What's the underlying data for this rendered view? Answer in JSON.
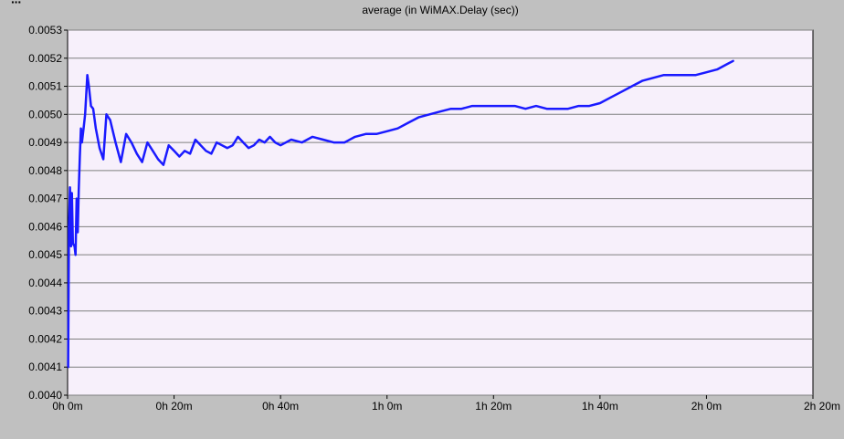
{
  "chart_data": {
    "type": "line",
    "title": "average (in WiMAX.Delay (sec))",
    "xlabel": "",
    "ylabel": "",
    "xlim_minutes": [
      0,
      140
    ],
    "ylim": [
      0.004,
      0.0053
    ],
    "grid": true,
    "line_color": "#1a1aff",
    "plot_background": "#f7f0fb",
    "x_ticks": [
      {
        "value": 0,
        "label": "0h 0m"
      },
      {
        "value": 20,
        "label": "0h 20m"
      },
      {
        "value": 40,
        "label": "0h 40m"
      },
      {
        "value": 60,
        "label": "1h 0m"
      },
      {
        "value": 80,
        "label": "1h 20m"
      },
      {
        "value": 100,
        "label": "1h 40m"
      },
      {
        "value": 120,
        "label": "2h 0m"
      },
      {
        "value": 140,
        "label": "2h 20m"
      }
    ],
    "y_ticks": [
      {
        "value": 0.004,
        "label": "0.0040"
      },
      {
        "value": 0.0041,
        "label": "0.0041"
      },
      {
        "value": 0.0042,
        "label": "0.0042"
      },
      {
        "value": 0.0043,
        "label": "0.0043"
      },
      {
        "value": 0.0044,
        "label": "0.0044"
      },
      {
        "value": 0.0045,
        "label": "0.0045"
      },
      {
        "value": 0.0046,
        "label": "0.0046"
      },
      {
        "value": 0.0047,
        "label": "0.0047"
      },
      {
        "value": 0.0048,
        "label": "0.0048"
      },
      {
        "value": 0.0049,
        "label": "0.0049"
      },
      {
        "value": 0.005,
        "label": "0.0050"
      },
      {
        "value": 0.0051,
        "label": "0.0051"
      },
      {
        "value": 0.0052,
        "label": "0.0052"
      },
      {
        "value": 0.0053,
        "label": "0.0053"
      }
    ],
    "series": [
      {
        "x_minutes": [
          0.1,
          0.25,
          0.45,
          0.65,
          0.8,
          1.0,
          1.3,
          1.5,
          1.7,
          1.9,
          2.1,
          2.3,
          2.5,
          2.7,
          3.0,
          3.3,
          3.7,
          4.0,
          4.4,
          4.8,
          5.3,
          6.0,
          6.7,
          7.3,
          8.0,
          9.0,
          10.0,
          11.0,
          12.0,
          13.0,
          14.0,
          15.0,
          16.0,
          17.0,
          18.0,
          19.0,
          20.0,
          21.0,
          22.0,
          23.0,
          24.0,
          25.0,
          26.0,
          27.0,
          28.0,
          29.0,
          30.0,
          31.0,
          32.0,
          33.0,
          34.0,
          35.0,
          36.0,
          37.0,
          38.0,
          39.0,
          40.0,
          42.0,
          44.0,
          46.0,
          48.0,
          50.0,
          52.0,
          54.0,
          56.0,
          58.0,
          60.0,
          62.0,
          64.0,
          66.0,
          68.0,
          70.0,
          72.0,
          74.0,
          76.0,
          78.0,
          80.0,
          82.0,
          84.0,
          86.0,
          88.0,
          90.0,
          92.0,
          94.0,
          96.0,
          98.0,
          100.0,
          102.0,
          104.0,
          106.0,
          108.0,
          110.0,
          112.0,
          114.0,
          116.0,
          118.0,
          120.0,
          122.0,
          124.0,
          125.0
        ],
        "values": [
          0.0041,
          0.0046,
          0.00474,
          0.00453,
          0.00472,
          0.00454,
          0.00453,
          0.0045,
          0.0047,
          0.00458,
          0.00473,
          0.00485,
          0.00495,
          0.0049,
          0.00495,
          0.005,
          0.00514,
          0.0051,
          0.00503,
          0.00502,
          0.00495,
          0.00488,
          0.00484,
          0.005,
          0.00498,
          0.0049,
          0.00483,
          0.00493,
          0.0049,
          0.00486,
          0.00483,
          0.0049,
          0.00487,
          0.00484,
          0.00482,
          0.00489,
          0.00487,
          0.00485,
          0.00487,
          0.00486,
          0.00491,
          0.00489,
          0.00487,
          0.00486,
          0.0049,
          0.00489,
          0.00488,
          0.00489,
          0.00492,
          0.0049,
          0.00488,
          0.00489,
          0.00491,
          0.0049,
          0.00492,
          0.0049,
          0.00489,
          0.00491,
          0.0049,
          0.00492,
          0.00491,
          0.0049,
          0.0049,
          0.00492,
          0.00493,
          0.00493,
          0.00494,
          0.00495,
          0.00497,
          0.00499,
          0.005,
          0.00501,
          0.00502,
          0.00502,
          0.00503,
          0.00503,
          0.00503,
          0.00503,
          0.00503,
          0.00502,
          0.00503,
          0.00502,
          0.00502,
          0.00502,
          0.00503,
          0.00503,
          0.00504,
          0.00506,
          0.00508,
          0.0051,
          0.00512,
          0.00513,
          0.00514,
          0.00514,
          0.00514,
          0.00514,
          0.00515,
          0.00516,
          0.00518,
          0.00519
        ]
      }
    ]
  }
}
